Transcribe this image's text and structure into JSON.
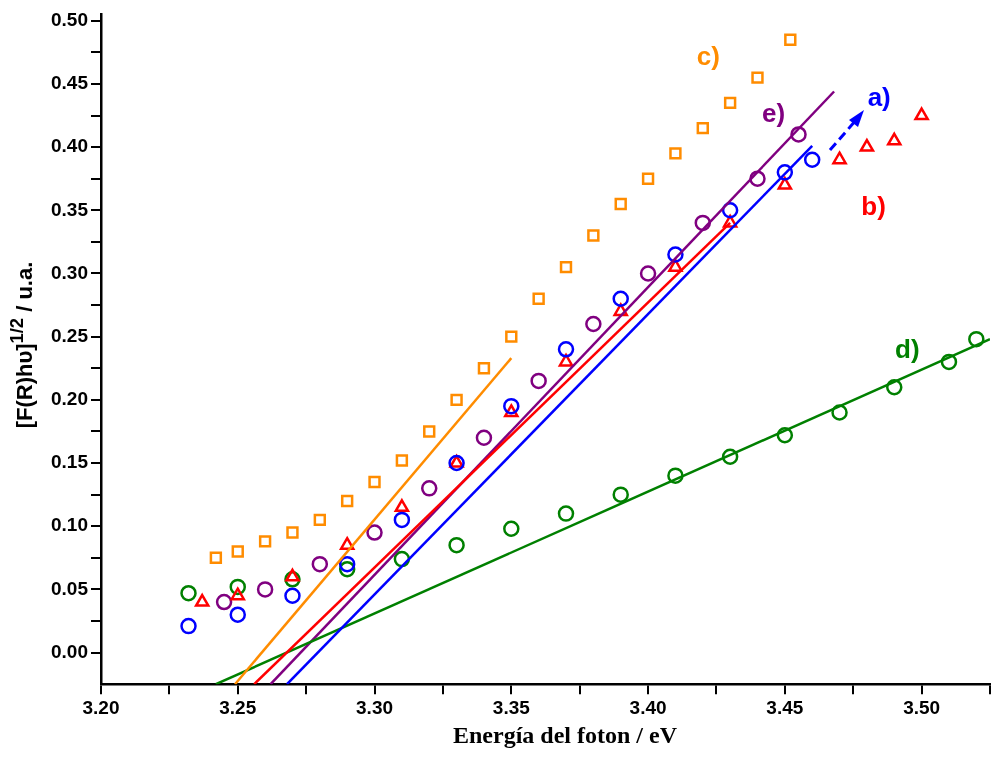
{
  "chart_data": {
    "type": "scatter",
    "xlabel": "Energía del foton / eV",
    "ylabel": "[F(R)hυ]$^{1/2}$ / u.a.",
    "xlim": [
      3.2,
      3.525
    ],
    "ylim": [
      -0.025,
      0.505
    ],
    "xticks": [
      {
        "value": 3.2,
        "label": "3.20"
      },
      {
        "value": 3.225,
        "label": null
      },
      {
        "value": 3.25,
        "label": "3.25"
      },
      {
        "value": 3.275,
        "label": null
      },
      {
        "value": 3.3,
        "label": "3.30"
      },
      {
        "value": 3.325,
        "label": null
      },
      {
        "value": 3.35,
        "label": "3.35"
      },
      {
        "value": 3.375,
        "label": null
      },
      {
        "value": 3.4,
        "label": "3.40"
      },
      {
        "value": 3.425,
        "label": null
      },
      {
        "value": 3.45,
        "label": "3.45"
      },
      {
        "value": 3.475,
        "label": null
      },
      {
        "value": 3.5,
        "label": "3.50"
      },
      {
        "value": 3.525,
        "label": null
      }
    ],
    "yticks": [
      {
        "value": 0,
        "label": "0.00"
      },
      {
        "value": 0.025,
        "label": null
      },
      {
        "value": 0.05,
        "label": "0.05"
      },
      {
        "value": 0.075,
        "label": null
      },
      {
        "value": 0.1,
        "label": "0.10"
      },
      {
        "value": 0.125,
        "label": null
      },
      {
        "value": 0.15,
        "label": "0.15"
      },
      {
        "value": 0.175,
        "label": null
      },
      {
        "value": 0.2,
        "label": "0.20"
      },
      {
        "value": 0.225,
        "label": null
      },
      {
        "value": 0.25,
        "label": "0.25"
      },
      {
        "value": 0.275,
        "label": null
      },
      {
        "value": 0.3,
        "label": "0.30"
      },
      {
        "value": 0.325,
        "label": null
      },
      {
        "value": 0.35,
        "label": "0.35"
      },
      {
        "value": 0.375,
        "label": null
      },
      {
        "value": 0.4,
        "label": "0.40"
      },
      {
        "value": 0.425,
        "label": null
      },
      {
        "value": 0.45,
        "label": "0.45"
      },
      {
        "value": 0.475,
        "label": null
      },
      {
        "value": 0.5,
        "label": "0.50"
      }
    ],
    "grid": false,
    "legend": false,
    "series": [
      {
        "name": "a)",
        "marker": "circle",
        "color": "#0000ff",
        "x": [
          3.232,
          3.25,
          3.27,
          3.29,
          3.31,
          3.33,
          3.35,
          3.37,
          3.39,
          3.41,
          3.43,
          3.45,
          3.46
        ],
        "values": [
          0.021,
          0.03,
          0.045,
          0.07,
          0.105,
          0.15,
          0.195,
          0.24,
          0.28,
          0.315,
          0.35,
          0.38,
          0.39
        ]
      },
      {
        "name": "b)",
        "marker": "triangle",
        "color": "#ff0000",
        "x": [
          3.237,
          3.25,
          3.27,
          3.29,
          3.31,
          3.33,
          3.35,
          3.37,
          3.39,
          3.41,
          3.43,
          3.45,
          3.47,
          3.48,
          3.49,
          3.5
        ],
        "values": [
          0.04,
          0.045,
          0.06,
          0.085,
          0.115,
          0.15,
          0.19,
          0.23,
          0.27,
          0.305,
          0.34,
          0.37,
          0.39,
          0.4,
          0.405,
          0.425
        ]
      },
      {
        "name": "c)",
        "marker": "square",
        "color": "#ff8c00",
        "x": [
          3.242,
          3.25,
          3.26,
          3.27,
          3.28,
          3.29,
          3.3,
          3.31,
          3.32,
          3.33,
          3.34,
          3.35,
          3.36,
          3.37,
          3.38,
          3.39,
          3.4,
          3.41,
          3.42,
          3.43,
          3.44,
          3.452
        ],
        "values": [
          0.075,
          0.08,
          0.088,
          0.095,
          0.105,
          0.12,
          0.135,
          0.152,
          0.175,
          0.2,
          0.225,
          0.25,
          0.28,
          0.305,
          0.33,
          0.355,
          0.375,
          0.395,
          0.415,
          0.435,
          0.455,
          0.485
        ]
      },
      {
        "name": "d)",
        "marker": "circle",
        "color": "#008000",
        "x": [
          3.232,
          3.25,
          3.27,
          3.29,
          3.31,
          3.33,
          3.35,
          3.37,
          3.39,
          3.41,
          3.43,
          3.45,
          3.47,
          3.49,
          3.51,
          3.52
        ],
        "values": [
          0.047,
          0.052,
          0.058,
          0.066,
          0.074,
          0.085,
          0.098,
          0.11,
          0.125,
          0.14,
          0.155,
          0.172,
          0.19,
          0.21,
          0.23,
          0.248
        ]
      },
      {
        "name": "e)",
        "marker": "circle",
        "color": "#800080",
        "x": [
          3.245,
          3.26,
          3.28,
          3.3,
          3.32,
          3.34,
          3.36,
          3.38,
          3.4,
          3.42,
          3.44,
          3.455
        ],
        "values": [
          0.04,
          0.05,
          0.07,
          0.095,
          0.13,
          0.17,
          0.215,
          0.26,
          0.3,
          0.34,
          0.375,
          0.41
        ]
      },
      {
        "type": "line",
        "marker": "none",
        "color": "#0000ff",
        "x": [
          3.268,
          3.46
        ],
        "values": [
          -0.025,
          0.401
        ]
      },
      {
        "type": "line",
        "marker": "none",
        "color": "#ff0000",
        "x": [
          3.256,
          3.43
        ],
        "values": [
          -0.025,
          0.34
        ]
      },
      {
        "type": "line",
        "marker": "none",
        "color": "#ff8c00",
        "x": [
          3.249,
          3.35
        ],
        "values": [
          -0.025,
          0.233
        ]
      },
      {
        "type": "line",
        "marker": "none",
        "color": "#008000",
        "x": [
          3.242,
          3.525
        ],
        "values": [
          -0.025,
          0.248
        ]
      },
      {
        "type": "line",
        "marker": "none",
        "color": "#800080",
        "x": [
          3.262,
          3.468
        ],
        "values": [
          -0.025,
          0.444
        ]
      }
    ]
  }
}
